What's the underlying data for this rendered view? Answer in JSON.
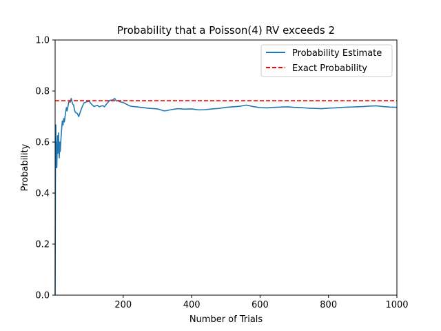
{
  "chart_data": {
    "type": "line",
    "title": "Probability that a Poisson(4) RV exceeds 2",
    "xlabel": "Number of Trials",
    "ylabel": "Probability",
    "xlim": [
      1,
      1000
    ],
    "ylim": [
      0.0,
      1.0
    ],
    "x_ticks": [
      200,
      400,
      600,
      800,
      1000
    ],
    "x_tick_labels": [
      "200",
      "400",
      "600",
      "800",
      "1000"
    ],
    "y_ticks": [
      0.0,
      0.2,
      0.4,
      0.6,
      0.8,
      1.0
    ],
    "y_tick_labels": [
      "0.0",
      "0.2",
      "0.4",
      "0.6",
      "0.8",
      "1.0"
    ],
    "grid": false,
    "legend_position": "top-right",
    "series": [
      {
        "name": "Probability Estimate",
        "color": "#1f77b4",
        "style": "solid",
        "x": [
          1,
          2,
          3,
          4,
          5,
          6,
          7,
          8,
          9,
          10,
          11,
          12,
          13,
          14,
          15,
          16,
          18,
          20,
          22,
          24,
          26,
          28,
          30,
          32,
          34,
          36,
          38,
          40,
          42,
          45,
          48,
          50,
          52,
          55,
          58,
          60,
          63,
          66,
          70,
          75,
          80,
          85,
          90,
          95,
          100,
          105,
          110,
          115,
          120,
          125,
          130,
          135,
          140,
          145,
          150,
          160,
          170,
          175,
          180,
          185,
          190,
          200,
          210,
          220,
          230,
          240,
          250,
          260,
          270,
          280,
          290,
          300,
          310,
          320,
          330,
          340,
          350,
          360,
          380,
          400,
          420,
          440,
          460,
          480,
          500,
          520,
          540,
          560,
          570,
          580,
          600,
          620,
          640,
          660,
          680,
          700,
          720,
          740,
          760,
          780,
          800,
          820,
          840,
          860,
          880,
          900,
          920,
          940,
          960,
          980,
          1000
        ],
        "y": [
          0.0,
          0.5,
          0.667,
          0.5,
          0.6,
          0.5,
          0.571,
          0.625,
          0.556,
          0.6,
          0.636,
          0.583,
          0.538,
          0.571,
          0.6,
          0.563,
          0.611,
          0.65,
          0.682,
          0.667,
          0.692,
          0.679,
          0.7,
          0.719,
          0.735,
          0.722,
          0.737,
          0.75,
          0.762,
          0.756,
          0.771,
          0.76,
          0.75,
          0.745,
          0.724,
          0.717,
          0.714,
          0.712,
          0.7,
          0.72,
          0.738,
          0.753,
          0.756,
          0.758,
          0.76,
          0.752,
          0.745,
          0.739,
          0.742,
          0.744,
          0.738,
          0.741,
          0.743,
          0.738,
          0.747,
          0.763,
          0.765,
          0.771,
          0.761,
          0.762,
          0.758,
          0.755,
          0.748,
          0.741,
          0.739,
          0.738,
          0.736,
          0.735,
          0.733,
          0.732,
          0.731,
          0.73,
          0.726,
          0.722,
          0.724,
          0.727,
          0.729,
          0.731,
          0.729,
          0.73,
          0.726,
          0.727,
          0.73,
          0.732,
          0.736,
          0.738,
          0.74,
          0.745,
          0.742,
          0.739,
          0.735,
          0.734,
          0.736,
          0.737,
          0.738,
          0.736,
          0.735,
          0.733,
          0.732,
          0.731,
          0.733,
          0.734,
          0.736,
          0.737,
          0.738,
          0.739,
          0.741,
          0.742,
          0.739,
          0.737,
          0.736
        ]
      },
      {
        "name": "Exact Probability",
        "color": "#ff0000",
        "style": "dashed",
        "x": [
          1,
          1000
        ],
        "y": [
          0.7619,
          0.7619
        ]
      }
    ]
  }
}
